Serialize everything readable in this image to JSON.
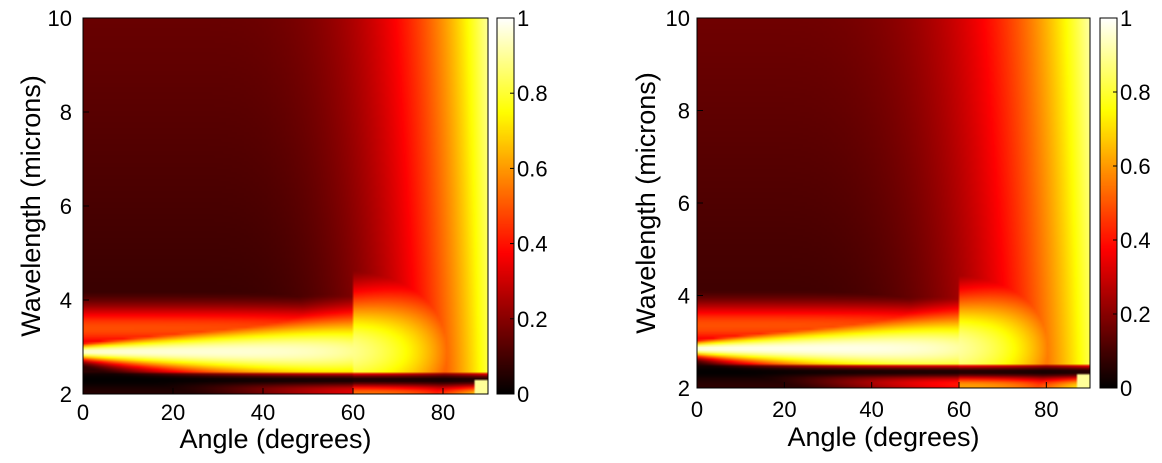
{
  "chart_data": [
    {
      "type": "heatmap",
      "title": "",
      "xlabel": "Angle (degrees)",
      "ylabel": "Wavelength (microns)",
      "xlim": [
        0,
        90
      ],
      "ylim": [
        2,
        10
      ],
      "xticks": [
        0,
        20,
        40,
        60,
        80
      ],
      "xtick_labels": [
        "0",
        "20",
        "40",
        "60",
        "80"
      ],
      "yticks": [
        2,
        4,
        6,
        8,
        10
      ],
      "ytick_labels": [
        "2",
        "4",
        "6",
        "8",
        "10"
      ],
      "colormap": "hot",
      "colorbar": {
        "range": [
          0,
          1
        ],
        "ticks": [
          0,
          0.2,
          0.4,
          0.6,
          0.8,
          1
        ],
        "tick_labels": [
          "0",
          "0.2",
          "0.4",
          "0.6",
          "0.8",
          "1"
        ]
      },
      "features": {
        "bright_band_center_wavelength": 2.9,
        "bright_band_peak_value": 0.95,
        "dark_band_wavelength": 2.3,
        "background_value_low_angle": 0.07,
        "edge_brightening_above_angle": 70
      }
    },
    {
      "type": "heatmap",
      "title": "",
      "xlabel": "Angle (degrees)",
      "ylabel": "Wavelength (microns)",
      "xlim": [
        0,
        90
      ],
      "ylim": [
        2,
        10
      ],
      "xticks": [
        0,
        20,
        40,
        60,
        80
      ],
      "xtick_labels": [
        "0",
        "20",
        "40",
        "60",
        "80"
      ],
      "yticks": [
        2,
        4,
        6,
        8,
        10
      ],
      "ytick_labels": [
        "2",
        "4",
        "6",
        "8",
        "10"
      ],
      "colormap": "hot",
      "colorbar": {
        "range": [
          0,
          1
        ],
        "ticks": [
          0,
          0.2,
          0.4,
          0.6,
          0.8,
          1
        ],
        "tick_labels": [
          "0",
          "0.2",
          "0.4",
          "0.6",
          "0.8",
          "1"
        ]
      },
      "features": {
        "bright_band_center_wavelength": 2.85,
        "bright_band_peak_value": 0.97,
        "dark_band_wavelength": 2.35,
        "background_value_low_angle": 0.08,
        "edge_brightening_above_angle": 60
      }
    }
  ]
}
